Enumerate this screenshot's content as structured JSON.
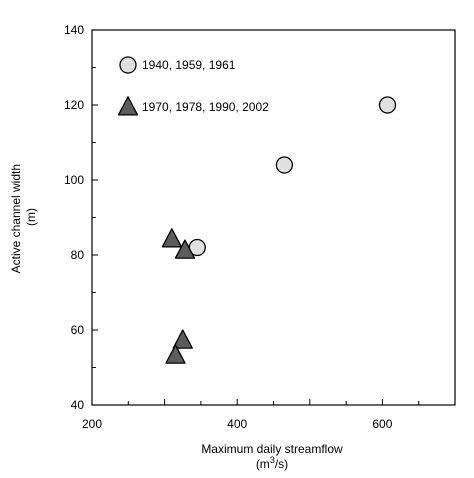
{
  "chart_data": {
    "type": "scatter",
    "title": "",
    "xlabel": "Maximum daily streamflow",
    "xlabel_unit": "(m3/s)",
    "ylabel": "Active channel width",
    "ylabel_unit": "(m)",
    "xlim": [
      200,
      700
    ],
    "ylim": [
      40,
      140
    ],
    "x_ticks": [
      200,
      400,
      600
    ],
    "y_ticks": [
      40,
      60,
      80,
      100,
      120,
      140
    ],
    "grid": false,
    "legend_position": "top-left",
    "series": [
      {
        "name": "1940, 1959, 1961",
        "marker": "circle",
        "color": "#e0e0e0",
        "points": [
          {
            "x": 345,
            "y": 82
          },
          {
            "x": 465,
            "y": 104
          },
          {
            "x": 607,
            "y": 120
          }
        ]
      },
      {
        "name": "1970, 1978, 1990, 2002",
        "marker": "triangle",
        "color": "#5c5c5c",
        "points": [
          {
            "x": 310,
            "y": 84
          },
          {
            "x": 328,
            "y": 81
          },
          {
            "x": 325,
            "y": 57
          },
          {
            "x": 315,
            "y": 53
          }
        ]
      }
    ]
  }
}
